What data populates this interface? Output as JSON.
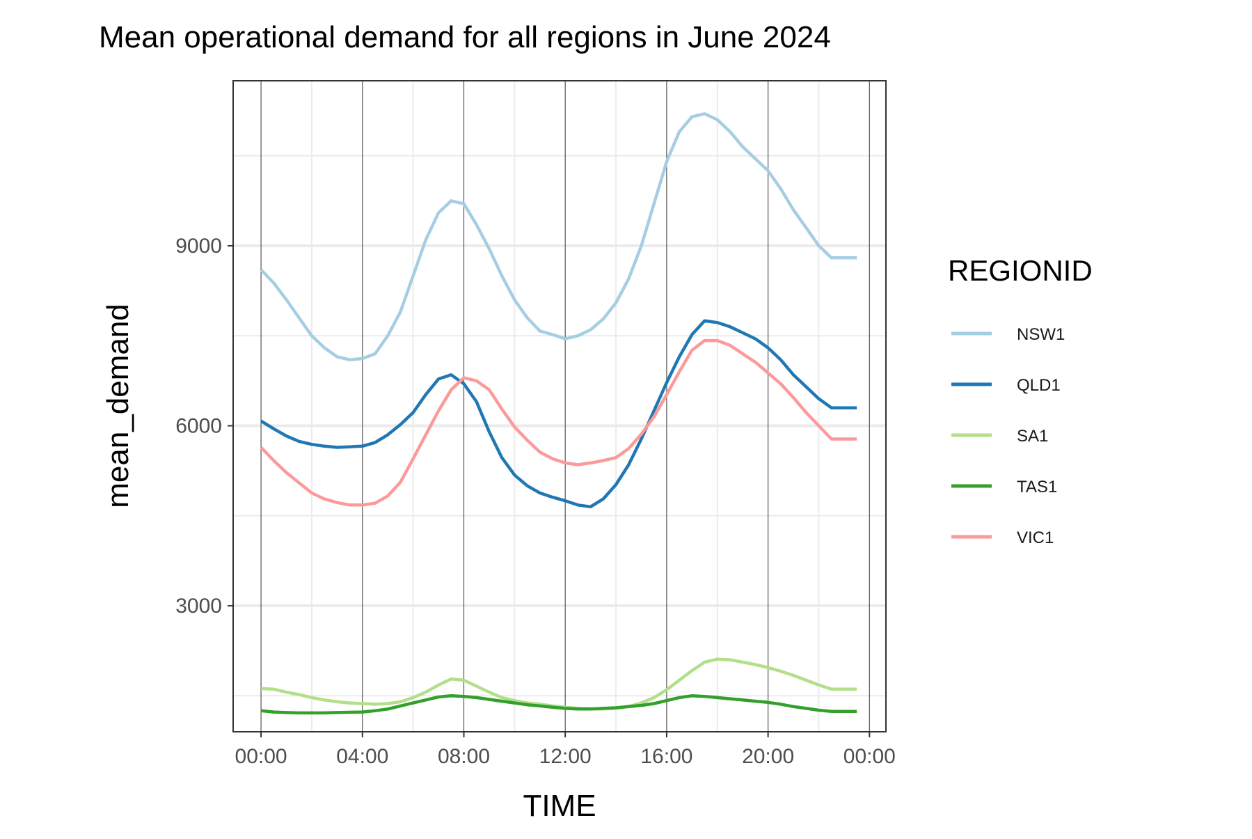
{
  "chart_data": {
    "type": "line",
    "title": "Mean operational demand for all regions in June 2024",
    "xlabel": "TIME",
    "ylabel": "mean_demand",
    "x_tick_labels": [
      "00:00",
      "04:00",
      "08:00",
      "12:00",
      "16:00",
      "20:00",
      "00:00"
    ],
    "x_tick_hours": [
      0,
      4,
      8,
      12,
      16,
      20,
      24
    ],
    "xlim_hours": [
      -1.1,
      24.65
    ],
    "y_tick_labels": [
      "3000",
      "6000",
      "9000"
    ],
    "y_ticks": [
      3000,
      6000,
      9000
    ],
    "ylim": [
      900,
      11750
    ],
    "grid": true,
    "legend": {
      "title": "REGIONID",
      "position": "right"
    },
    "x": [
      "00:00",
      "00:30",
      "01:00",
      "01:30",
      "02:00",
      "02:30",
      "03:00",
      "03:30",
      "04:00",
      "04:30",
      "05:00",
      "05:30",
      "06:00",
      "06:30",
      "07:00",
      "07:30",
      "08:00",
      "08:30",
      "09:00",
      "09:30",
      "10:00",
      "10:30",
      "11:00",
      "11:30",
      "12:00",
      "12:30",
      "13:00",
      "13:30",
      "14:00",
      "14:30",
      "15:00",
      "15:30",
      "16:00",
      "16:30",
      "17:00",
      "17:30",
      "18:00",
      "18:30",
      "19:00",
      "19:30",
      "20:00",
      "20:30",
      "21:00",
      "21:30",
      "22:00",
      "22:30",
      "23:00",
      "23:30"
    ],
    "series": [
      {
        "name": "NSW1",
        "color": "#a6cee3",
        "values": [
          8600,
          8380,
          8100,
          7800,
          7500,
          7300,
          7150,
          7100,
          7120,
          7200,
          7500,
          7900,
          8500,
          9100,
          9550,
          9750,
          9700,
          9350,
          8950,
          8500,
          8100,
          7800,
          7580,
          7520,
          7450,
          7500,
          7600,
          7780,
          8050,
          8450,
          9000,
          9700,
          10400,
          10900,
          11150,
          11200,
          11100,
          10900,
          10650,
          10450,
          10250,
          9950,
          9600,
          9300,
          9000,
          8800,
          8800,
          8800
        ]
      },
      {
        "name": "QLD1",
        "color": "#1f78b4",
        "values": [
          6080,
          5950,
          5830,
          5740,
          5690,
          5660,
          5640,
          5650,
          5660,
          5720,
          5850,
          6020,
          6220,
          6520,
          6780,
          6850,
          6700,
          6400,
          5900,
          5470,
          5180,
          5000,
          4880,
          4810,
          4750,
          4680,
          4650,
          4780,
          5020,
          5350,
          5780,
          6250,
          6720,
          7150,
          7520,
          7750,
          7720,
          7650,
          7550,
          7450,
          7300,
          7100,
          6850,
          6650,
          6450,
          6300,
          6300,
          6300
        ]
      },
      {
        "name": "SA1",
        "color": "#b2df8a",
        "values": [
          1620,
          1610,
          1560,
          1520,
          1470,
          1430,
          1400,
          1380,
          1370,
          1360,
          1370,
          1400,
          1470,
          1560,
          1680,
          1780,
          1760,
          1660,
          1560,
          1470,
          1420,
          1380,
          1360,
          1330,
          1310,
          1290,
          1280,
          1280,
          1290,
          1320,
          1380,
          1470,
          1600,
          1760,
          1920,
          2060,
          2110,
          2100,
          2060,
          2020,
          1970,
          1910,
          1840,
          1760,
          1680,
          1610,
          1610,
          1610
        ]
      },
      {
        "name": "TAS1",
        "color": "#33a02c",
        "values": [
          1250,
          1230,
          1220,
          1215,
          1215,
          1215,
          1220,
          1225,
          1230,
          1250,
          1280,
          1330,
          1380,
          1430,
          1480,
          1500,
          1490,
          1470,
          1440,
          1410,
          1380,
          1350,
          1330,
          1310,
          1290,
          1280,
          1280,
          1290,
          1300,
          1320,
          1340,
          1370,
          1420,
          1470,
          1500,
          1490,
          1470,
          1450,
          1430,
          1410,
          1390,
          1360,
          1320,
          1290,
          1260,
          1240,
          1240,
          1240
        ]
      },
      {
        "name": "VIC1",
        "color": "#fb9a99",
        "values": [
          5640,
          5420,
          5220,
          5050,
          4880,
          4780,
          4720,
          4680,
          4680,
          4710,
          4830,
          5060,
          5450,
          5850,
          6250,
          6600,
          6800,
          6750,
          6600,
          6280,
          5980,
          5760,
          5560,
          5450,
          5380,
          5350,
          5380,
          5420,
          5470,
          5620,
          5860,
          6150,
          6520,
          6900,
          7260,
          7420,
          7420,
          7340,
          7200,
          7060,
          6880,
          6700,
          6470,
          6220,
          6000,
          5780,
          5780,
          5780
        ]
      }
    ]
  }
}
